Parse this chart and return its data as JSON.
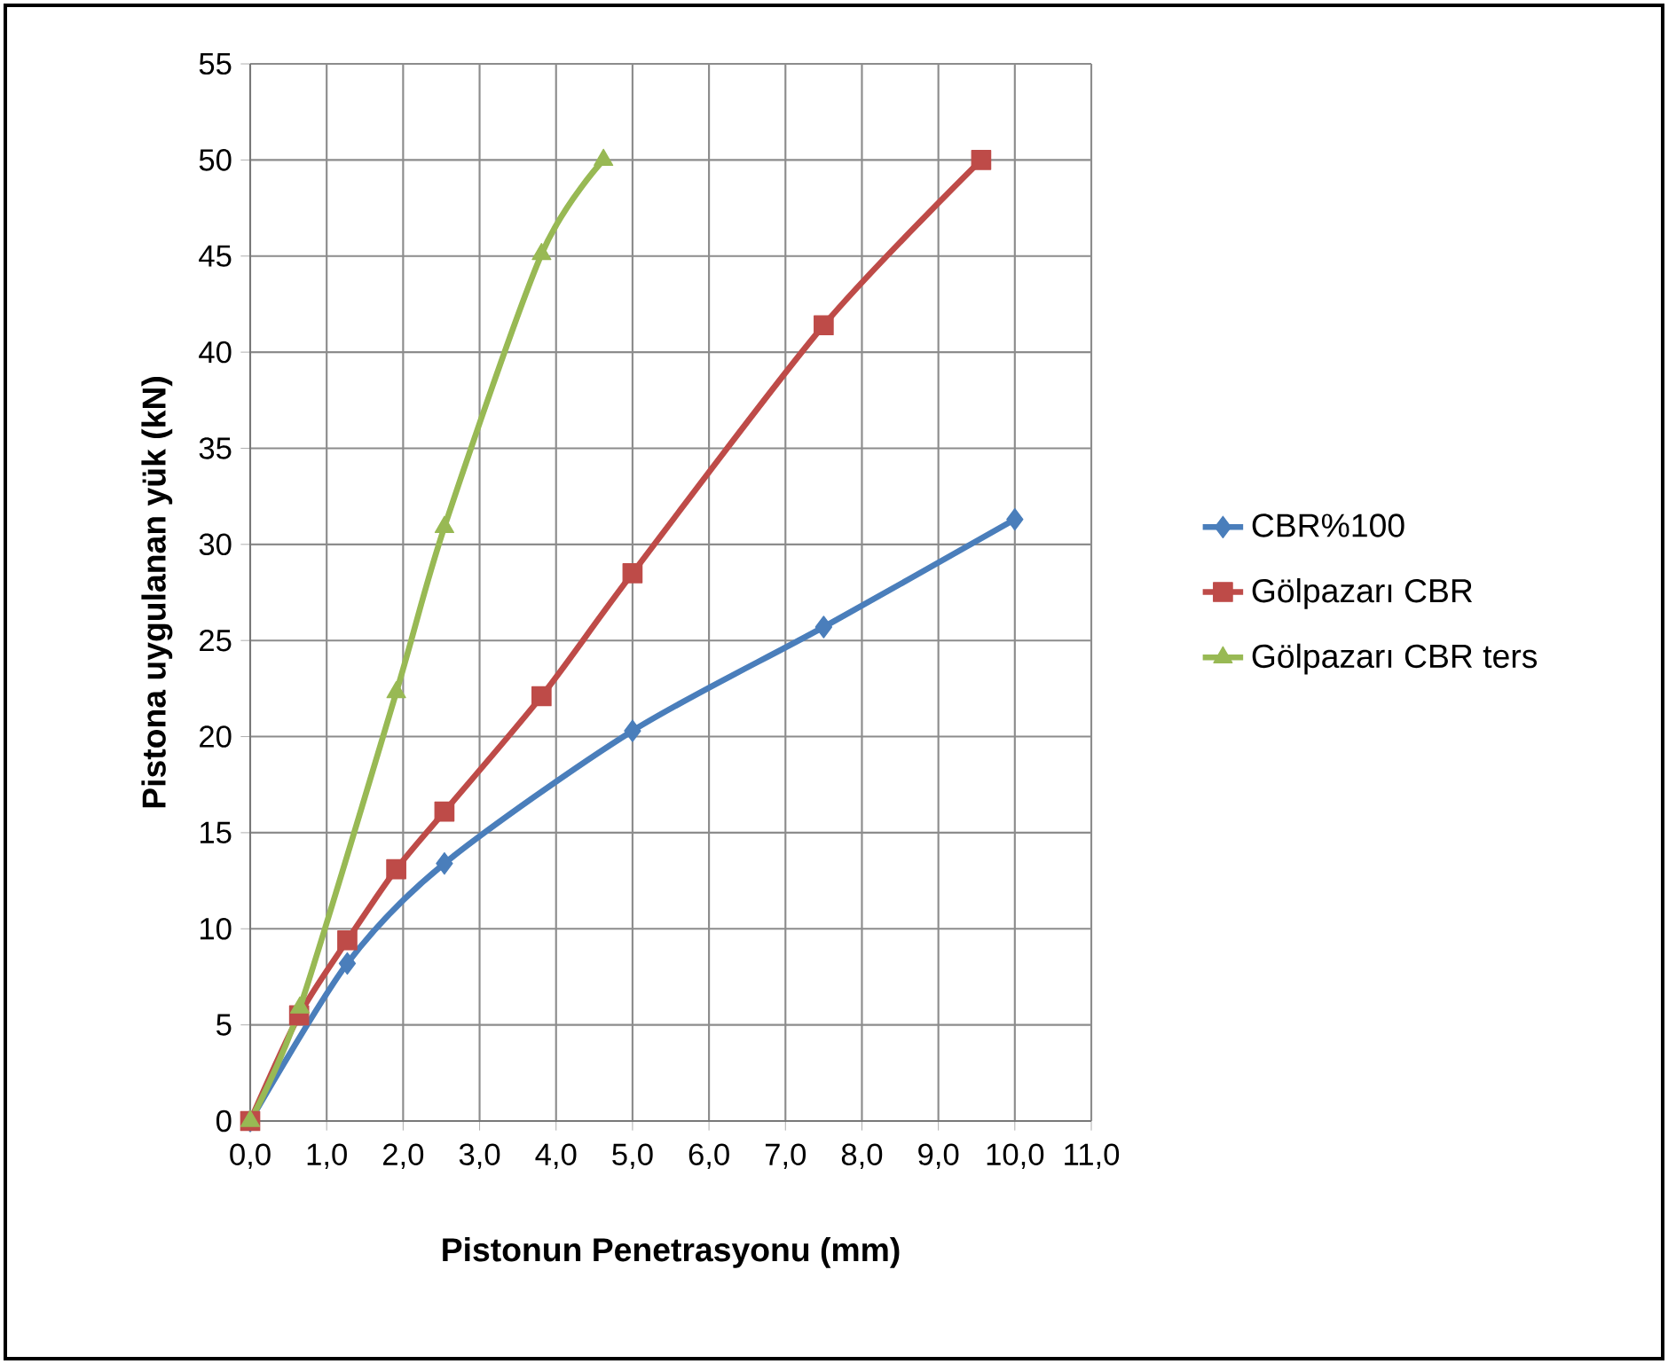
{
  "chart_data": {
    "type": "line",
    "xlabel": "Pistonun Penetrasyonu (mm)",
    "ylabel": "Pistona uygulanan yük (kN)",
    "xlim": [
      0,
      11
    ],
    "ylim": [
      0,
      55
    ],
    "xticks": [
      {
        "value": 0,
        "label": "0,0"
      },
      {
        "value": 1,
        "label": "1,0"
      },
      {
        "value": 2,
        "label": "2,0"
      },
      {
        "value": 3,
        "label": "3,0"
      },
      {
        "value": 4,
        "label": "4,0"
      },
      {
        "value": 5,
        "label": "5,0"
      },
      {
        "value": 6,
        "label": "6,0"
      },
      {
        "value": 7,
        "label": "7,0"
      },
      {
        "value": 8,
        "label": "8,0"
      },
      {
        "value": 9,
        "label": "9,0"
      },
      {
        "value": 10,
        "label": "10,0"
      },
      {
        "value": 11,
        "label": "11,0"
      }
    ],
    "yticks": [
      0,
      5,
      10,
      15,
      20,
      25,
      30,
      35,
      40,
      45,
      50,
      55
    ],
    "grid": true,
    "legend": "right",
    "series": [
      {
        "name": "CBR%100",
        "color": "#4a7ebb",
        "marker": "diamond",
        "x": [
          0,
          1.27,
          2.54,
          5.0,
          7.5,
          10.0
        ],
        "values": [
          0,
          8.2,
          13.4,
          20.3,
          25.7,
          31.3
        ]
      },
      {
        "name": "Gölpazarı CBR",
        "color": "#be4b48",
        "marker": "square",
        "x": [
          0,
          0.64,
          1.27,
          1.91,
          2.54,
          3.81,
          5.0,
          7.5,
          9.56
        ],
        "values": [
          0,
          5.5,
          9.4,
          13.1,
          16.1,
          22.1,
          28.5,
          41.4,
          50
        ]
      },
      {
        "name": "Gölpazarı CBR ters",
        "color": "#98b954",
        "marker": "triangle",
        "x": [
          0,
          0.65,
          1.91,
          2.54,
          3.81,
          4.62
        ],
        "values": [
          0,
          5.9,
          22.3,
          30.9,
          45.1,
          50
        ]
      }
    ]
  }
}
